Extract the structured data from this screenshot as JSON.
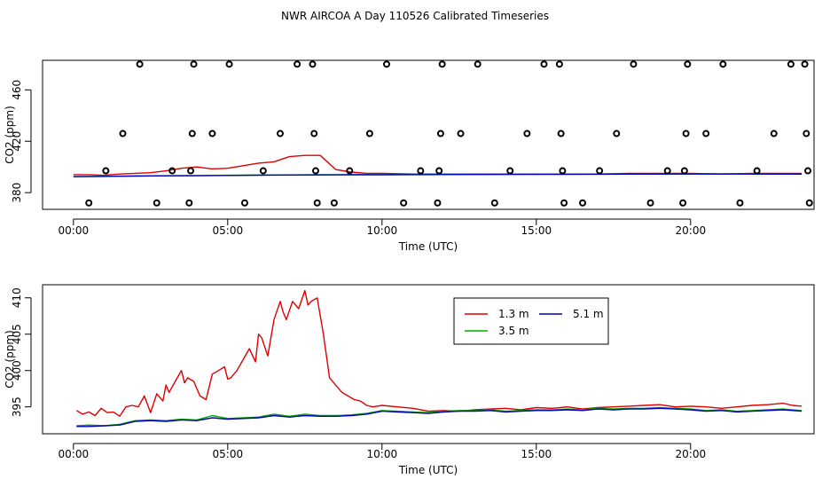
{
  "title": "NWR AIRCOA A  Day 110526  Calibrated Timeseries",
  "chart_data": [
    {
      "type": "line+scatter",
      "xlabel": "Time (UTC)",
      "ylabel": "CO2 (ppm)",
      "xlim": [
        -1,
        24
      ],
      "ylim": [
        367,
        483
      ],
      "x_ticks": [
        0,
        5,
        10,
        15,
        20
      ],
      "x_tick_labels": [
        "00:00",
        "05:00",
        "10:00",
        "15:00",
        "20:00"
      ],
      "y_ticks": [
        380,
        420,
        460
      ],
      "y_tick_labels": [
        "380",
        "420",
        "460"
      ],
      "grid": false,
      "scatter": {
        "marker": "open-circle",
        "color": "#000000",
        "points": [
          [
            0.5,
            372
          ],
          [
            1.05,
            397
          ],
          [
            1.6,
            426
          ],
          [
            2.15,
            480
          ],
          [
            2.7,
            372
          ],
          [
            3.2,
            397
          ],
          [
            3.75,
            372
          ],
          [
            3.8,
            397
          ],
          [
            3.85,
            426
          ],
          [
            3.9,
            480
          ],
          [
            4.5,
            426
          ],
          [
            5.05,
            480
          ],
          [
            5.55,
            372
          ],
          [
            6.15,
            397
          ],
          [
            6.7,
            426
          ],
          [
            7.25,
            480
          ],
          [
            7.75,
            480
          ],
          [
            7.8,
            426
          ],
          [
            7.85,
            397
          ],
          [
            7.9,
            372
          ],
          [
            8.45,
            372
          ],
          [
            8.95,
            397
          ],
          [
            9.6,
            426
          ],
          [
            10.15,
            480
          ],
          [
            10.7,
            372
          ],
          [
            11.25,
            397
          ],
          [
            11.8,
            372
          ],
          [
            11.85,
            397
          ],
          [
            11.9,
            426
          ],
          [
            11.95,
            480
          ],
          [
            12.55,
            426
          ],
          [
            13.1,
            480
          ],
          [
            13.65,
            372
          ],
          [
            14.15,
            397
          ],
          [
            14.7,
            426
          ],
          [
            15.25,
            480
          ],
          [
            15.75,
            480
          ],
          [
            15.8,
            426
          ],
          [
            15.85,
            397
          ],
          [
            15.9,
            372
          ],
          [
            16.5,
            372
          ],
          [
            17.05,
            397
          ],
          [
            17.6,
            426
          ],
          [
            18.15,
            480
          ],
          [
            18.7,
            372
          ],
          [
            19.25,
            397
          ],
          [
            19.75,
            372
          ],
          [
            19.8,
            397
          ],
          [
            19.85,
            426
          ],
          [
            19.9,
            480
          ],
          [
            20.5,
            426
          ],
          [
            21.05,
            480
          ],
          [
            21.6,
            372
          ],
          [
            22.15,
            397
          ],
          [
            22.7,
            426
          ],
          [
            23.25,
            480
          ],
          [
            23.7,
            480
          ],
          [
            23.75,
            426
          ],
          [
            23.8,
            397
          ],
          [
            23.85,
            372
          ]
        ]
      },
      "series": [
        {
          "name": "1.3 m",
          "color": "#dd0000",
          "x": [
            0,
            0.5,
            1,
            1.5,
            2,
            2.5,
            3,
            3.5,
            4,
            4.5,
            5,
            5.5,
            6,
            6.5,
            7,
            7.5,
            8,
            8.5,
            9,
            9.5,
            10,
            11,
            12,
            13,
            14,
            15,
            16,
            17,
            18,
            19,
            20,
            21,
            22,
            23,
            23.6
          ],
          "y": [
            394,
            394,
            393.5,
            394.5,
            395,
            395.5,
            397,
            399,
            400,
            398.5,
            399,
            401,
            403,
            404,
            408,
            409,
            409,
            398,
            396,
            395,
            395,
            394.5,
            394.5,
            394.5,
            394.5,
            394.5,
            394.5,
            394.5,
            395,
            395,
            395,
            394.5,
            395,
            395,
            395
          ]
        },
        {
          "name": "3.5 m",
          "color": "#00aa00",
          "x": [
            0,
            1,
            2,
            3,
            4,
            5,
            6,
            7,
            8,
            9,
            10,
            11,
            12,
            14,
            16,
            18,
            20,
            22,
            23.6
          ],
          "y": [
            392.5,
            392.7,
            393,
            393.2,
            393.3,
            393.5,
            393.7,
            393.8,
            393.9,
            394,
            394,
            394.1,
            394.2,
            394.3,
            394.4,
            394.5,
            394.6,
            394.6,
            394.5
          ]
        },
        {
          "name": "5.1 m",
          "color": "#0000bb",
          "x": [
            0,
            1,
            2,
            3,
            4,
            5,
            6,
            7,
            8,
            9,
            10,
            11,
            12,
            14,
            16,
            18,
            20,
            22,
            23.6
          ],
          "y": [
            392.4,
            392.6,
            392.9,
            393.1,
            393.2,
            393.4,
            393.6,
            393.7,
            393.8,
            393.9,
            393.9,
            394,
            394.1,
            394.2,
            394.3,
            394.4,
            394.5,
            394.5,
            394.4
          ]
        }
      ]
    },
    {
      "type": "line",
      "xlabel": "Time (UTC)",
      "ylabel": "CO2 (ppm)",
      "xlim": [
        -1,
        24
      ],
      "ylim": [
        391.3,
        411.8
      ],
      "x_ticks": [
        0,
        5,
        10,
        15,
        20
      ],
      "x_tick_labels": [
        "00:00",
        "05:00",
        "10:00",
        "15:00",
        "20:00"
      ],
      "y_ticks": [
        395,
        400,
        405,
        410
      ],
      "y_tick_labels": [
        "395",
        "400",
        "405",
        "410"
      ],
      "grid": false,
      "legend": {
        "placement": "top-center",
        "entries": [
          {
            "label": "1.3 m",
            "color": "#dd0000"
          },
          {
            "label": "5.1 m",
            "color": "#0000bb"
          },
          {
            "label": "3.5 m",
            "color": "#00aa00"
          }
        ]
      },
      "series": [
        {
          "name": "1.3 m",
          "color": "#dd0000",
          "x": [
            0.1,
            0.3,
            0.5,
            0.7,
            0.9,
            1.1,
            1.3,
            1.5,
            1.7,
            1.9,
            2.1,
            2.3,
            2.5,
            2.7,
            2.9,
            3.0,
            3.1,
            3.3,
            3.5,
            3.6,
            3.7,
            3.9,
            4.1,
            4.3,
            4.5,
            4.7,
            4.9,
            5.0,
            5.1,
            5.3,
            5.5,
            5.7,
            5.9,
            6.0,
            6.1,
            6.3,
            6.5,
            6.7,
            6.8,
            6.9,
            7.1,
            7.3,
            7.5,
            7.6,
            7.7,
            7.9,
            8.1,
            8.3,
            8.5,
            8.7,
            8.9,
            9.1,
            9.3,
            9.5,
            9.7,
            10.0,
            10.5,
            11.0,
            11.5,
            12.0,
            12.5,
            13.0,
            13.5,
            14.0,
            14.5,
            15.0,
            15.5,
            16.0,
            16.5,
            17.0,
            17.5,
            18.0,
            18.5,
            19.0,
            19.5,
            20.0,
            20.5,
            21.0,
            21.5,
            22.0,
            22.5,
            23.0,
            23.3,
            23.6
          ],
          "y": [
            394.5,
            394,
            394.3,
            393.8,
            394.8,
            394.2,
            394.3,
            393.7,
            395,
            395.2,
            395,
            396.5,
            394.2,
            396.8,
            395.8,
            398,
            397,
            398.5,
            400,
            398.3,
            399,
            398.5,
            396.5,
            396,
            399.5,
            400,
            400.5,
            398.8,
            399,
            400,
            401.5,
            403,
            401.2,
            405,
            404.5,
            402,
            407,
            409.5,
            408,
            407,
            409.5,
            408.5,
            411,
            409,
            409.5,
            410,
            405,
            399,
            398,
            397,
            396.5,
            396,
            395.8,
            395.2,
            395,
            395.2,
            395,
            394.8,
            394.4,
            394.5,
            394.4,
            394.6,
            394.7,
            394.8,
            394.6,
            394.9,
            394.8,
            395,
            394.7,
            394.9,
            395,
            395.1,
            395.2,
            395.3,
            395,
            395.1,
            395,
            394.8,
            395,
            395.2,
            395.3,
            395.5,
            395.2,
            395.1
          ]
        },
        {
          "name": "3.5 m",
          "color": "#00aa00",
          "x": [
            0.1,
            0.5,
            1,
            1.5,
            2,
            2.5,
            3,
            3.5,
            4,
            4.5,
            5,
            5.5,
            6,
            6.5,
            7,
            7.5,
            8,
            8.5,
            9,
            9.5,
            10,
            10.5,
            11,
            11.5,
            12,
            12.5,
            13,
            13.5,
            14,
            14.5,
            15,
            15.5,
            16,
            16.5,
            17,
            17.5,
            18,
            18.5,
            19,
            19.5,
            20,
            20.5,
            21,
            21.5,
            22,
            22.5,
            23,
            23.6
          ],
          "y": [
            392.4,
            392.5,
            392.4,
            392.6,
            393.1,
            393.2,
            393.1,
            393.3,
            393.2,
            393.8,
            393.4,
            393.5,
            393.6,
            394,
            393.7,
            394,
            393.8,
            393.8,
            393.9,
            394.1,
            394.5,
            394.4,
            394.3,
            394.2,
            394.4,
            394.5,
            394.5,
            394.6,
            394.4,
            394.5,
            394.6,
            394.6,
            394.7,
            394.6,
            394.8,
            394.7,
            394.8,
            394.8,
            394.9,
            394.8,
            394.7,
            394.5,
            394.6,
            394.4,
            394.5,
            394.6,
            394.7,
            394.5
          ]
        },
        {
          "name": "5.1 m",
          "color": "#0000bb",
          "x": [
            0.1,
            0.5,
            1,
            1.5,
            2,
            2.5,
            3,
            3.5,
            4,
            4.5,
            5,
            5.5,
            6,
            6.5,
            7,
            7.5,
            8,
            8.5,
            9,
            9.5,
            10,
            10.5,
            11,
            11.5,
            12,
            12.5,
            13,
            13.5,
            14,
            14.5,
            15,
            15.5,
            16,
            16.5,
            17,
            17.5,
            18,
            18.5,
            19,
            19.5,
            20,
            20.5,
            21,
            21.5,
            22,
            22.5,
            23,
            23.6
          ],
          "y": [
            392.3,
            392.3,
            392.4,
            392.5,
            393,
            393.1,
            393,
            393.2,
            393.1,
            393.5,
            393.3,
            393.4,
            393.5,
            393.8,
            393.6,
            393.8,
            393.7,
            393.7,
            393.8,
            394,
            394.4,
            394.3,
            394.2,
            394.1,
            394.3,
            394.4,
            394.4,
            394.5,
            394.3,
            394.4,
            394.5,
            394.5,
            394.6,
            394.5,
            394.7,
            394.6,
            394.7,
            394.7,
            394.8,
            394.7,
            394.6,
            394.4,
            394.5,
            394.3,
            394.4,
            394.5,
            394.6,
            394.4
          ]
        }
      ]
    }
  ]
}
